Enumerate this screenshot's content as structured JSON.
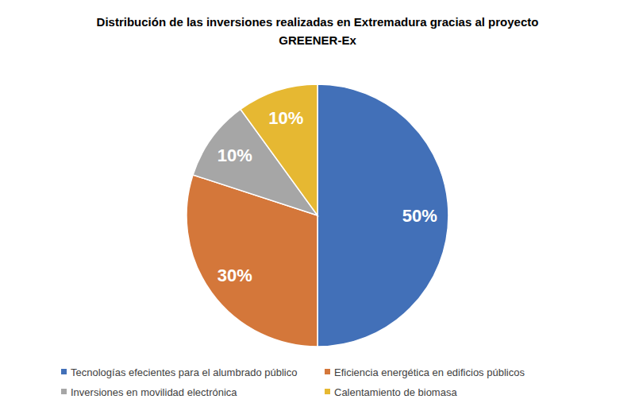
{
  "chart_data": {
    "type": "pie",
    "title": "Distribución de las inversiones realizadas en Extremadura gracias al proyecto GREENER-Ex",
    "categories": [
      "Tecnologías efecientes para el alumbrado público",
      "Eficiencia energética en edificios públicos",
      "Inversiones en movilidad electrónica",
      "Calentamiento de biomasa"
    ],
    "values": [
      50,
      30,
      10,
      10
    ],
    "value_labels": [
      "50%",
      "30%",
      "10%",
      "10%"
    ],
    "colors": [
      "#4270b8",
      "#d4773a",
      "#a6a6a6",
      "#e6b832"
    ],
    "data_labels": true,
    "legend": "bottom"
  }
}
